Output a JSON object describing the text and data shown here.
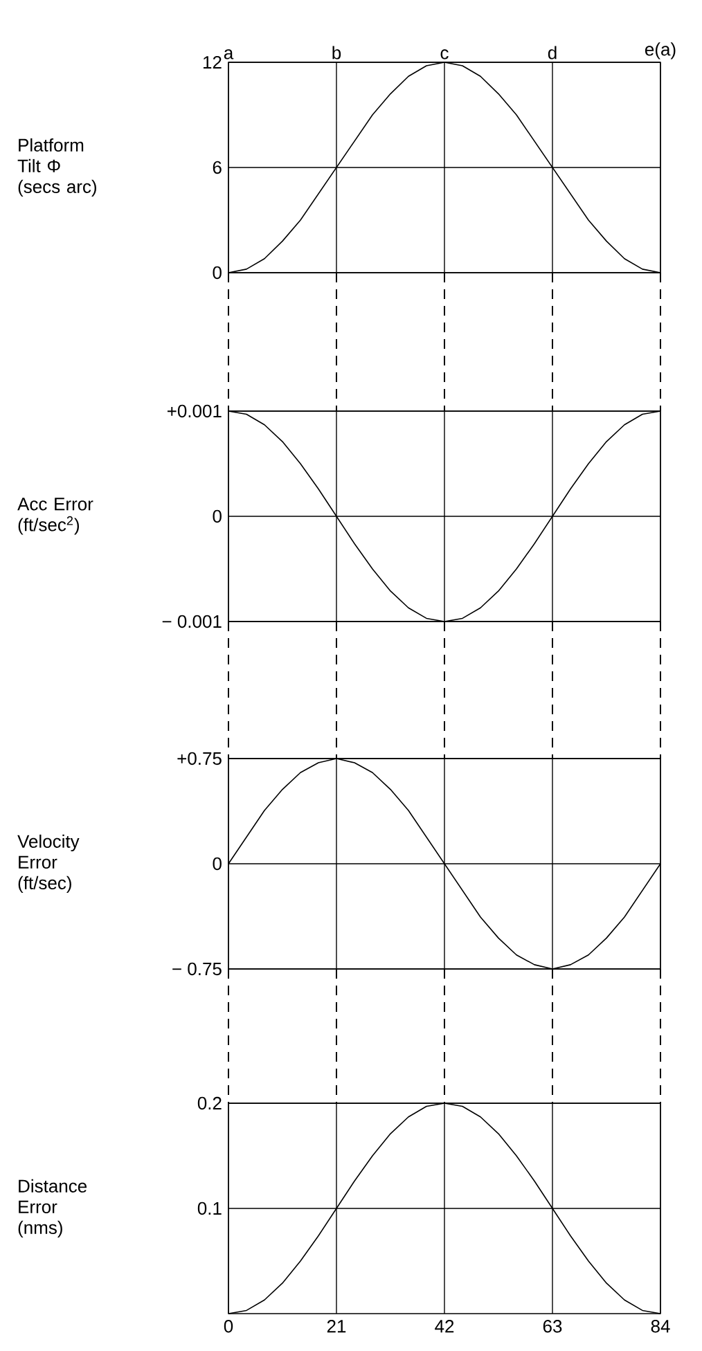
{
  "chart_data": [
    {
      "type": "line",
      "ylabel": "Platform Tilt Φ (secs arc)",
      "grid": true,
      "x": [
        0,
        3.5,
        7,
        10.5,
        14,
        17.5,
        21,
        24.5,
        28,
        31.5,
        35,
        38.5,
        42,
        45.5,
        49,
        52.5,
        56,
        59.5,
        63,
        66.5,
        70,
        73.5,
        77,
        80.5,
        84
      ],
      "series": [
        {
          "color": "#000000",
          "values": [
            0,
            0.2,
            0.8,
            1.8,
            3,
            4.5,
            6,
            7.5,
            9,
            10.2,
            11.2,
            11.8,
            12,
            11.8,
            11.2,
            10.2,
            9,
            7.5,
            6,
            4.5,
            3,
            1.8,
            0.8,
            0.2,
            0
          ]
        }
      ],
      "xlim": [
        0,
        84
      ],
      "ylim": [
        0,
        12
      ],
      "yticks": [
        0,
        6,
        12
      ],
      "xticks": [
        0,
        21,
        42,
        63,
        84
      ],
      "tick_labels": "y",
      "annotations": [
        "a",
        "b",
        "c",
        "d",
        "e(a)"
      ]
    },
    {
      "type": "line",
      "ylabel": "Acc Error (ft/sec$^{2}$)",
      "grid": true,
      "tick_labels": "y",
      "x": [
        0,
        3.5,
        7,
        10.5,
        14,
        17.5,
        21,
        24.5,
        28,
        31.5,
        35,
        38.5,
        42,
        45.5,
        49,
        52.5,
        56,
        59.5,
        63,
        66.5,
        70,
        73.5,
        77,
        80.5,
        84
      ],
      "series": [
        {
          "color": "#000000",
          "values": [
            0.001,
            0.00097,
            0.00087,
            0.00071,
            0.0005,
            0.00026,
            0,
            -0.00026,
            -0.0005,
            -0.00071,
            -0.00087,
            -0.00097,
            -0.001,
            -0.00097,
            -0.00087,
            -0.00071,
            -0.0005,
            -0.00026,
            0,
            0.00026,
            0.0005,
            0.00071,
            0.00087,
            0.00097,
            0.001
          ]
        }
      ],
      "xlim": [
        0,
        84
      ],
      "xticks": [
        0,
        21,
        42,
        63,
        84
      ],
      "ylim": [
        -0.001,
        0.001
      ],
      "yticks": [
        {
          "value": -0.001,
          "label": "− 0.001"
        },
        0,
        {
          "value": 0.001,
          "label": "+0.001"
        }
      ]
    },
    {
      "type": "line",
      "ylabel": "Velocity Error (ft/sec)",
      "grid": true,
      "tick_labels": "y",
      "x": [
        0,
        3.5,
        7,
        10.5,
        14,
        17.5,
        21,
        24.5,
        28,
        31.5,
        35,
        38.5,
        42,
        45.5,
        49,
        52.5,
        56,
        59.5,
        63,
        66.5,
        70,
        73.5,
        77,
        80.5,
        84
      ],
      "series": [
        {
          "color": "#000000",
          "values": [
            0,
            0.19,
            0.38,
            0.53,
            0.65,
            0.72,
            0.75,
            0.72,
            0.65,
            0.53,
            0.38,
            0.19,
            0,
            -0.19,
            -0.38,
            -0.53,
            -0.65,
            -0.72,
            -0.75,
            -0.72,
            -0.65,
            -0.53,
            -0.38,
            -0.19,
            0
          ]
        }
      ],
      "xlim": [
        0,
        84
      ],
      "xticks": [
        0,
        21,
        42,
        63,
        84
      ],
      "ylim": [
        -0.75,
        0.75
      ],
      "yticks": [
        {
          "value": -0.75,
          "label": "− 0.75"
        },
        0,
        {
          "value": 0.75,
          "label": "+0.75"
        }
      ]
    },
    {
      "type": "line",
      "ylabel": "Distance Error (nms)",
      "grid": true,
      "x": [
        0,
        3.5,
        7,
        10.5,
        14,
        17.5,
        21,
        24.5,
        28,
        31.5,
        35,
        38.5,
        42,
        45.5,
        49,
        52.5,
        56,
        59.5,
        63,
        66.5,
        70,
        73.5,
        77,
        80.5,
        84
      ],
      "series": [
        {
          "color": "#000000",
          "values": [
            0,
            0.003,
            0.013,
            0.029,
            0.05,
            0.074,
            0.1,
            0.126,
            0.15,
            0.171,
            0.187,
            0.197,
            0.2,
            0.197,
            0.187,
            0.171,
            0.15,
            0.126,
            0.1,
            0.074,
            0.05,
            0.029,
            0.013,
            0.003,
            0
          ]
        }
      ],
      "xlim": [
        0,
        84
      ],
      "xticks": [
        0,
        21,
        42,
        63,
        84
      ],
      "ylim": [
        0,
        0.2
      ],
      "yticks": [
        0.1,
        0.2
      ]
    }
  ]
}
